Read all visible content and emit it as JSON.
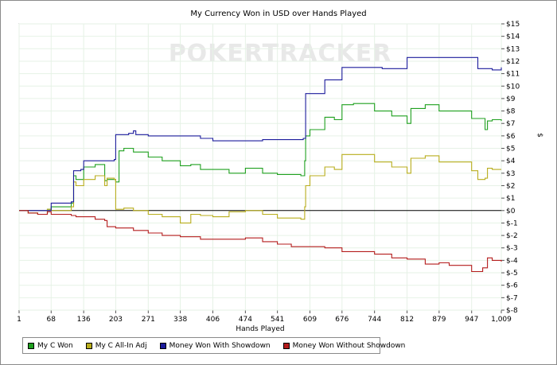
{
  "chart_data": {
    "type": "line",
    "title": "My Currency Won in USD over Hands Played",
    "watermark": "POKERTRACKER",
    "xlabel": "Hands Played",
    "ylabel": "$",
    "xlim": [
      1,
      1009
    ],
    "ylim": [
      -8,
      15
    ],
    "x_ticks": [
      "1",
      "68",
      "136",
      "203",
      "271",
      "338",
      "406",
      "474",
      "541",
      "609",
      "676",
      "744",
      "812",
      "879",
      "947",
      "1,009"
    ],
    "x_tick_values": [
      1,
      68,
      136,
      203,
      271,
      338,
      406,
      474,
      541,
      609,
      676,
      744,
      812,
      879,
      947,
      1009
    ],
    "y_ticks": [
      "$15",
      "$14",
      "$13",
      "$12",
      "$11",
      "$10",
      "$9",
      "$8",
      "$7",
      "$6",
      "$5",
      "$4",
      "$3",
      "$2",
      "$1",
      "$0",
      "$-1",
      "$-2",
      "$-3",
      "$-4",
      "$-5",
      "$-6",
      "$-7",
      "$-8"
    ],
    "y_tick_values": [
      15,
      14,
      13,
      12,
      11,
      10,
      9,
      8,
      7,
      6,
      5,
      4,
      3,
      2,
      1,
      0,
      -1,
      -2,
      -3,
      -4,
      -5,
      -6,
      -7,
      -8
    ],
    "grid": true,
    "legend_position": "bottom",
    "series": [
      {
        "name": "My C Won",
        "color": "#1fa01f",
        "x": [
          1,
          20,
          40,
          60,
          68,
          95,
          110,
          115,
          120,
          136,
          160,
          180,
          185,
          203,
          210,
          220,
          240,
          271,
          300,
          338,
          360,
          380,
          406,
          440,
          474,
          510,
          541,
          590,
          598,
          600,
          609,
          640,
          660,
          676,
          700,
          744,
          780,
          812,
          820,
          850,
          879,
          900,
          947,
          960,
          975,
          980,
          990,
          1009
        ],
        "y": [
          0,
          -0.2,
          -0.3,
          0.1,
          0.3,
          0.3,
          0.6,
          2.8,
          2.5,
          3.5,
          3.7,
          2.4,
          2.5,
          2.3,
          4.8,
          5.0,
          4.7,
          4.3,
          4.0,
          3.6,
          3.7,
          3.3,
          3.3,
          3.0,
          3.4,
          3.0,
          2.9,
          2.8,
          4.0,
          6.0,
          6.5,
          7.5,
          7.3,
          8.5,
          8.6,
          8.0,
          7.6,
          7.0,
          8.2,
          8.5,
          8.0,
          8.0,
          7.4,
          7.4,
          6.5,
          7.2,
          7.3,
          7.2
        ]
      },
      {
        "name": "My C All-In Adj",
        "color": "#b8ad1c",
        "x": [
          1,
          20,
          40,
          60,
          68,
          95,
          110,
          115,
          120,
          136,
          160,
          180,
          185,
          200,
          203,
          220,
          240,
          271,
          300,
          338,
          360,
          380,
          406,
          440,
          474,
          510,
          541,
          590,
          598,
          600,
          609,
          640,
          660,
          676,
          700,
          744,
          780,
          812,
          820,
          850,
          879,
          900,
          947,
          960,
          975,
          980,
          990,
          1009
        ],
        "y": [
          0,
          -0.2,
          -0.3,
          0.1,
          0.0,
          0.0,
          0.3,
          2.3,
          2.0,
          2.5,
          2.8,
          2.0,
          2.6,
          2.5,
          0.1,
          0.2,
          0.0,
          -0.3,
          -0.5,
          -1.0,
          -0.3,
          -0.4,
          -0.5,
          -0.1,
          0.0,
          -0.3,
          -0.6,
          -0.7,
          0.3,
          2.0,
          2.8,
          3.5,
          3.3,
          4.5,
          4.5,
          3.9,
          3.5,
          3.0,
          4.2,
          4.4,
          3.9,
          3.9,
          3.2,
          2.5,
          2.6,
          3.4,
          3.3,
          3.3
        ]
      },
      {
        "name": "Money Won With Showdown",
        "color": "#1c1c9c",
        "x": [
          1,
          67,
          68,
          100,
          110,
          115,
          130,
          136,
          185,
          200,
          203,
          230,
          240,
          245,
          271,
          380,
          406,
          500,
          510,
          541,
          595,
          600,
          609,
          640,
          676,
          760,
          812,
          900,
          947,
          960,
          990,
          1009
        ],
        "y": [
          0,
          0,
          0.6,
          0.6,
          0.7,
          3.2,
          3.3,
          4.0,
          4.0,
          4.1,
          6.1,
          6.2,
          6.4,
          6.1,
          6.0,
          5.8,
          5.6,
          5.6,
          5.7,
          5.7,
          5.8,
          9.4,
          9.4,
          10.5,
          11.5,
          11.4,
          12.3,
          12.3,
          12.3,
          11.4,
          11.3,
          11.5
        ]
      },
      {
        "name": "Money Won Without Showdown",
        "color": "#b41c1c",
        "x": [
          1,
          20,
          40,
          60,
          68,
          90,
          110,
          120,
          136,
          160,
          180,
          185,
          203,
          240,
          271,
          300,
          338,
          380,
          406,
          440,
          474,
          510,
          541,
          570,
          609,
          640,
          676,
          744,
          780,
          812,
          850,
          879,
          900,
          947,
          970,
          980,
          990,
          1009
        ],
        "y": [
          0,
          -0.2,
          -0.3,
          -0.1,
          -0.3,
          -0.3,
          -0.4,
          -0.5,
          -0.5,
          -0.7,
          -0.8,
          -1.3,
          -1.4,
          -1.6,
          -1.8,
          -2.0,
          -2.1,
          -2.3,
          -2.3,
          -2.3,
          -2.2,
          -2.5,
          -2.7,
          -2.9,
          -2.9,
          -3.0,
          -3.3,
          -3.5,
          -3.8,
          -3.9,
          -4.3,
          -4.2,
          -4.4,
          -4.9,
          -4.6,
          -3.8,
          -4.0,
          -4.1
        ]
      }
    ]
  }
}
